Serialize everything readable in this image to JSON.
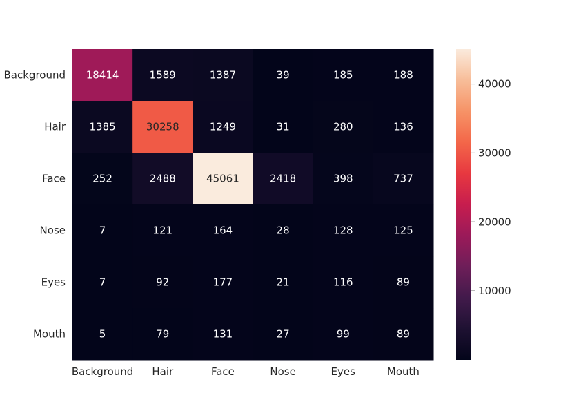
{
  "chart_data": {
    "type": "heatmap",
    "title": "",
    "xlabel": "",
    "ylabel": "",
    "row_labels": [
      "Background",
      "Hair",
      "Face",
      "Nose",
      "Eyes",
      "Mouth"
    ],
    "col_labels": [
      "Background",
      "Hair",
      "Face",
      "Nose",
      "Eyes",
      "Mouth"
    ],
    "values": [
      [
        18414,
        1589,
        1387,
        39,
        185,
        188
      ],
      [
        1385,
        30258,
        1249,
        31,
        280,
        136
      ],
      [
        252,
        2488,
        45061,
        2418,
        398,
        737
      ],
      [
        7,
        121,
        164,
        28,
        128,
        125
      ],
      [
        7,
        92,
        177,
        21,
        116,
        89
      ],
      [
        5,
        79,
        131,
        27,
        99,
        89
      ]
    ],
    "colormap": "rocket",
    "colorbar": {
      "ticks": [
        10000,
        20000,
        30000,
        40000
      ],
      "tick_labels": [
        "10000",
        "20000",
        "30000",
        "40000"
      ],
      "placement": "right"
    },
    "grid": false
  }
}
